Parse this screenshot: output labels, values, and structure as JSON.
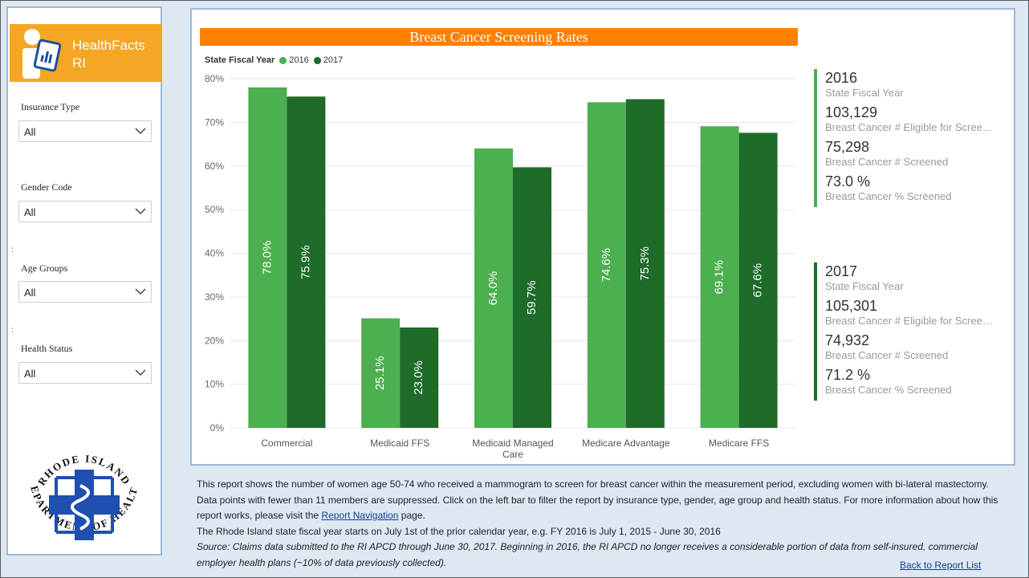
{
  "sidebar": {
    "logo_line1": "HealthFacts",
    "logo_line2": "RI",
    "filters": [
      {
        "label": "Insurance Type",
        "value": "All"
      },
      {
        "label": "Gender Code",
        "value": "All"
      },
      {
        "label": "Age Groups",
        "value": "All"
      },
      {
        "label": "Health Status",
        "value": "All"
      }
    ],
    "seal_text_top": "RHODE ISLAND",
    "seal_text_bottom": "DEPARTMENT OF HEALTH"
  },
  "chart_data": {
    "type": "bar",
    "title": "Breast Cancer Screening Rates",
    "legend_title": "State Fiscal Year",
    "categories": [
      "Commercial",
      "Medicaid FFS",
      "Medicaid Managed Care",
      "Medicare Advantage",
      "Medicare FFS"
    ],
    "series": [
      {
        "name": "2016",
        "color": "#4caf50",
        "values": [
          78.0,
          25.1,
          64.0,
          74.6,
          69.1
        ],
        "labels": [
          "78.0%",
          "25.1%",
          "64.0%",
          "74.6%",
          "69.1%"
        ]
      },
      {
        "name": "2017",
        "color": "#1e6b2a",
        "values": [
          75.9,
          23.0,
          59.7,
          75.3,
          67.6
        ],
        "labels": [
          "75.9%",
          "23.0%",
          "59.7%",
          "75.3%",
          "67.6%"
        ]
      }
    ],
    "yticks": [
      "0%",
      "10%",
      "20%",
      "30%",
      "40%",
      "50%",
      "60%",
      "70%",
      "80%"
    ],
    "ylim": [
      0,
      80
    ],
    "grid": true,
    "legend_position": "top-left"
  },
  "kpis": [
    {
      "color": "#4caf50",
      "year": "2016",
      "year_label": "State Fiscal Year",
      "eligible": "103,129",
      "eligible_label": "Breast Cancer # Eligible for Screening",
      "screened": "75,298",
      "screened_label": "Breast Cancer # Screened",
      "pct": "73.0 %",
      "pct_label": "Breast Cancer % Screened"
    },
    {
      "color": "#1e6b2a",
      "year": "2017",
      "year_label": "State Fiscal Year",
      "eligible": "105,301",
      "eligible_label": "Breast Cancer # Eligible for Screening",
      "screened": "74,932",
      "screened_label": "Breast Cancer # Screened",
      "pct": "71.2 %",
      "pct_label": "Breast Cancer % Screened"
    }
  ],
  "notes": {
    "para1": "This report shows the number of women age 50-74 who received a mammogram to screen for breast cancer within the measurement period, excluding women with bi-lateral mastectomy. Data points with fewer than 11 members are suppressed. Click on the left bar to filter the report by insurance type, gender, age group and health status. For more information about how this report works, please visit the ",
    "link": "Report Navigation",
    "para1_end": " page.",
    "para2": "The Rhode Island state fiscal year starts on July 1st of the prior calendar year, e.g. FY 2016 is July 1, 2015 - June 30, 2016",
    "source": "Source: Claims data submitted to the RI APCD through June 30, 2017. Beginning in 2016, the RI APCD no longer receives a considerable portion of data from self-insured, commercial employer health plans (~10% of data previously collected)."
  },
  "back_link": "Back to Report List"
}
